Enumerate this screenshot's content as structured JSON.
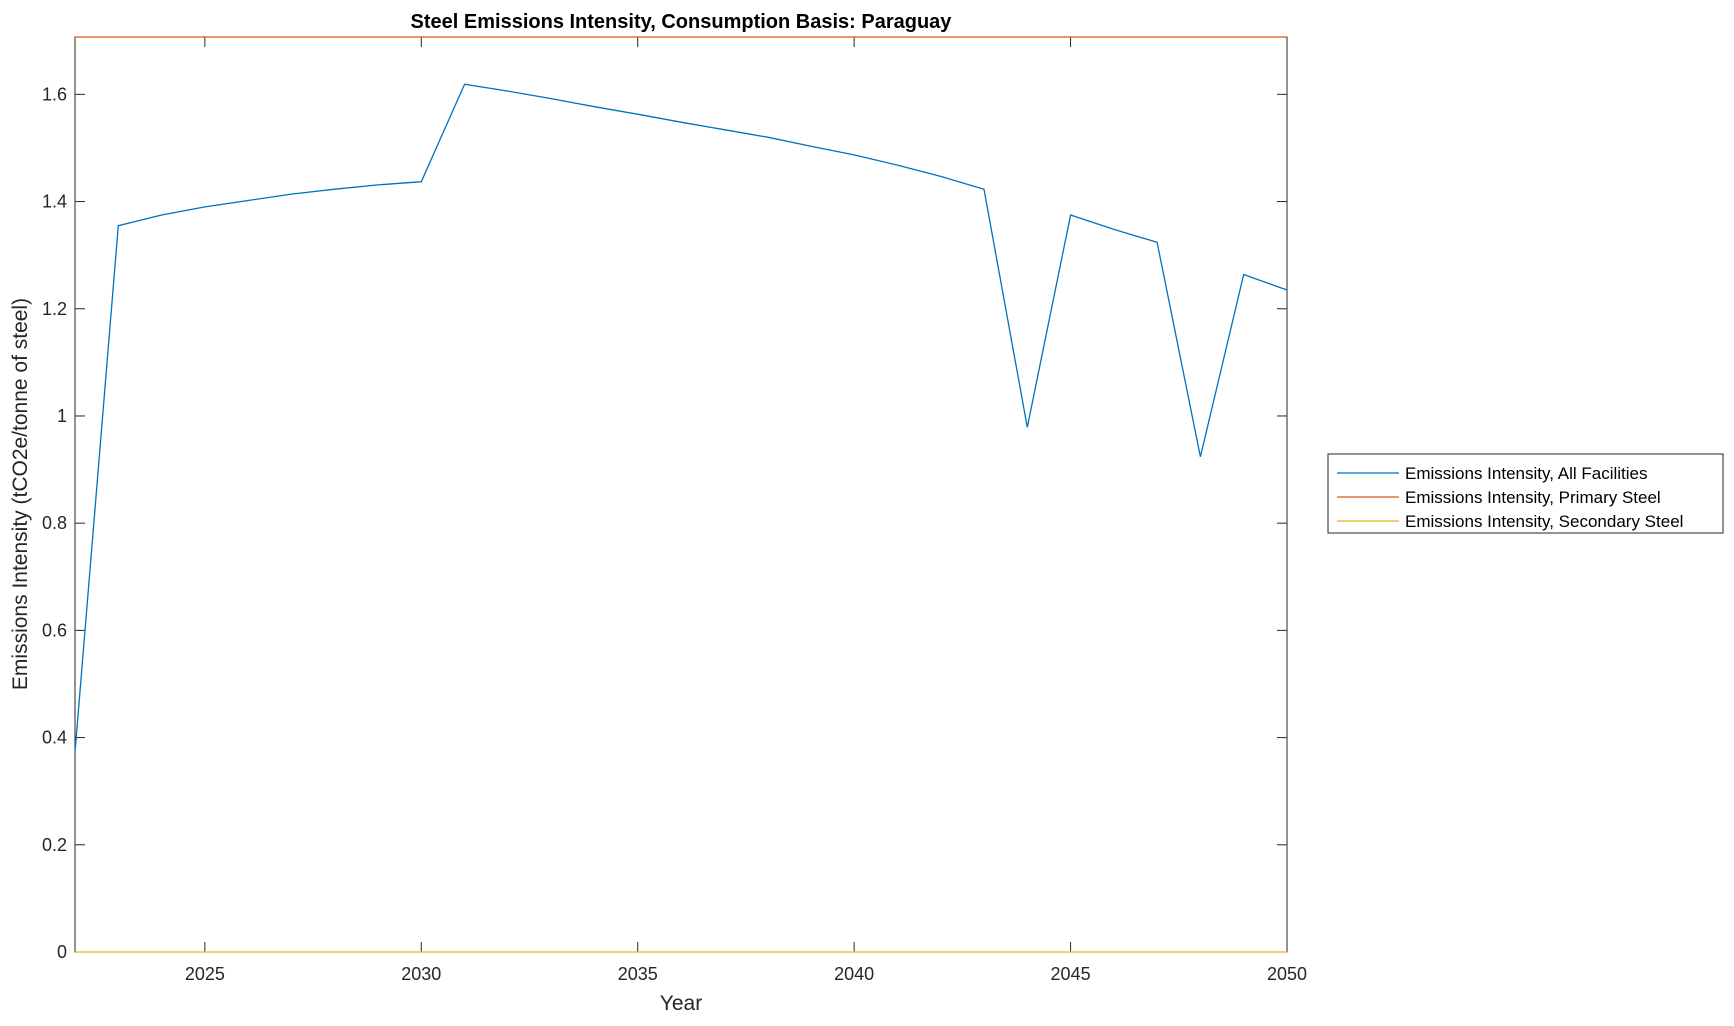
{
  "chart_data": {
    "type": "line",
    "title": "Steel Emissions Intensity, Consumption Basis: Paraguay",
    "xlabel": "Year",
    "ylabel": "Emissions Intensity (tCO2e/tonne of steel)",
    "xlim": [
      2022,
      2050
    ],
    "ylim": [
      0,
      1.707
    ],
    "xticks": [
      2025,
      2030,
      2035,
      2040,
      2045,
      2050
    ],
    "xtick_labels": [
      "2025",
      "2030",
      "2035",
      "2040",
      "2045",
      "2050"
    ],
    "yticks": [
      0,
      0.2,
      0.4,
      0.6,
      0.8,
      1,
      1.2,
      1.4,
      1.6
    ],
    "ytick_labels": [
      "0",
      "0.2",
      "0.4",
      "0.6",
      "0.8",
      "1",
      "1.2",
      "1.4",
      "1.6"
    ],
    "legend_position": "outside-right",
    "x": [
      2022,
      2023,
      2024,
      2025,
      2026,
      2027,
      2028,
      2029,
      2030,
      2031,
      2032,
      2033,
      2034,
      2035,
      2036,
      2037,
      2038,
      2039,
      2040,
      2041,
      2042,
      2043,
      2044,
      2045,
      2046,
      2047,
      2048,
      2049,
      2050
    ],
    "series": [
      {
        "name": "Emissions Intensity, All Facilities",
        "color": "#0072BD",
        "values": [
          0.373,
          1.355,
          1.375,
          1.39,
          1.402,
          1.414,
          1.423,
          1.431,
          1.437,
          1.619,
          1.606,
          1.592,
          1.577,
          1.563,
          1.548,
          1.534,
          1.52,
          1.503,
          1.487,
          1.468,
          1.447,
          1.423,
          0.979,
          1.375,
          1.348,
          1.324,
          0.924,
          1.264,
          1.235
        ]
      },
      {
        "name": "Emissions Intensity, Primary Steel",
        "color": "#D95319",
        "values": [
          1.707,
          1.707,
          1.707,
          1.707,
          1.707,
          1.707,
          1.707,
          1.707,
          1.707,
          1.707,
          1.707,
          1.707,
          1.707,
          1.707,
          1.707,
          1.707,
          1.707,
          1.707,
          1.707,
          1.707,
          1.707,
          1.707,
          1.707,
          1.707,
          1.707,
          1.707,
          1.707,
          1.707,
          1.707
        ]
      },
      {
        "name": "Emissions Intensity, Secondary Steel",
        "color": "#EDB120",
        "values": [
          0,
          0,
          0,
          0,
          0,
          0,
          0,
          0,
          0,
          0,
          0,
          0,
          0,
          0,
          0,
          0,
          0,
          0,
          0,
          0,
          0,
          0,
          0,
          0,
          0,
          0,
          0,
          0,
          0
        ]
      }
    ]
  }
}
